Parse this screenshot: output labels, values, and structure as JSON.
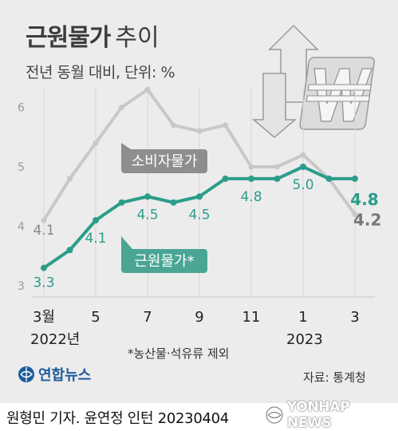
{
  "title": {
    "main": "근원물가",
    "sub": "추이"
  },
  "subtitle": "전년 동월 대비, 단위: %",
  "footnote": "*농산물·석유류 제외",
  "source": "자료: 통계청",
  "credit": "원형민 기자. 윤연정 인턴  20230404",
  "logo_text": "연합뉴스",
  "brand_text": "YONHAP NEWS",
  "colors": {
    "cpi": "#c8c8c8",
    "core": "#2b9d8a",
    "core_label": "#4aa595",
    "cpi_label": "#8e8e8e"
  },
  "chart_data": {
    "type": "line",
    "x": [
      "2022-03",
      "2022-04",
      "2022-05",
      "2022-06",
      "2022-07",
      "2022-08",
      "2022-09",
      "2022-10",
      "2022-11",
      "2022-12",
      "2023-01",
      "2023-02",
      "2023-03"
    ],
    "tick_labels": [
      "3월",
      "5",
      "7",
      "9",
      "11",
      "1",
      "3"
    ],
    "year_labels": [
      "2022년",
      "2023"
    ],
    "ylim": [
      3,
      6.4
    ],
    "y_ticks": [
      3,
      4,
      5,
      6
    ],
    "grid": "vertical",
    "series": [
      {
        "name": "소비자물가",
        "values": [
          4.1,
          4.8,
          5.4,
          6.0,
          6.3,
          5.7,
          5.6,
          5.7,
          5.0,
          5.0,
          5.2,
          4.8,
          4.2
        ],
        "point_labels": [
          {
            "index": 0,
            "text": "4.1"
          },
          {
            "index": 12,
            "text": "4.2"
          }
        ]
      },
      {
        "name": "근원물가*",
        "values": [
          3.3,
          3.6,
          4.1,
          4.4,
          4.5,
          4.4,
          4.5,
          4.8,
          4.8,
          4.8,
          5.0,
          4.8,
          4.8
        ],
        "point_labels": [
          {
            "index": 0,
            "text": "3.3"
          },
          {
            "index": 2,
            "text": "4.1"
          },
          {
            "index": 4,
            "text": "4.5"
          },
          {
            "index": 6,
            "text": "4.5"
          },
          {
            "index": 8,
            "text": "4.8"
          },
          {
            "index": 10,
            "text": "5.0"
          },
          {
            "index": 12,
            "text": "4.8"
          }
        ]
      }
    ]
  }
}
